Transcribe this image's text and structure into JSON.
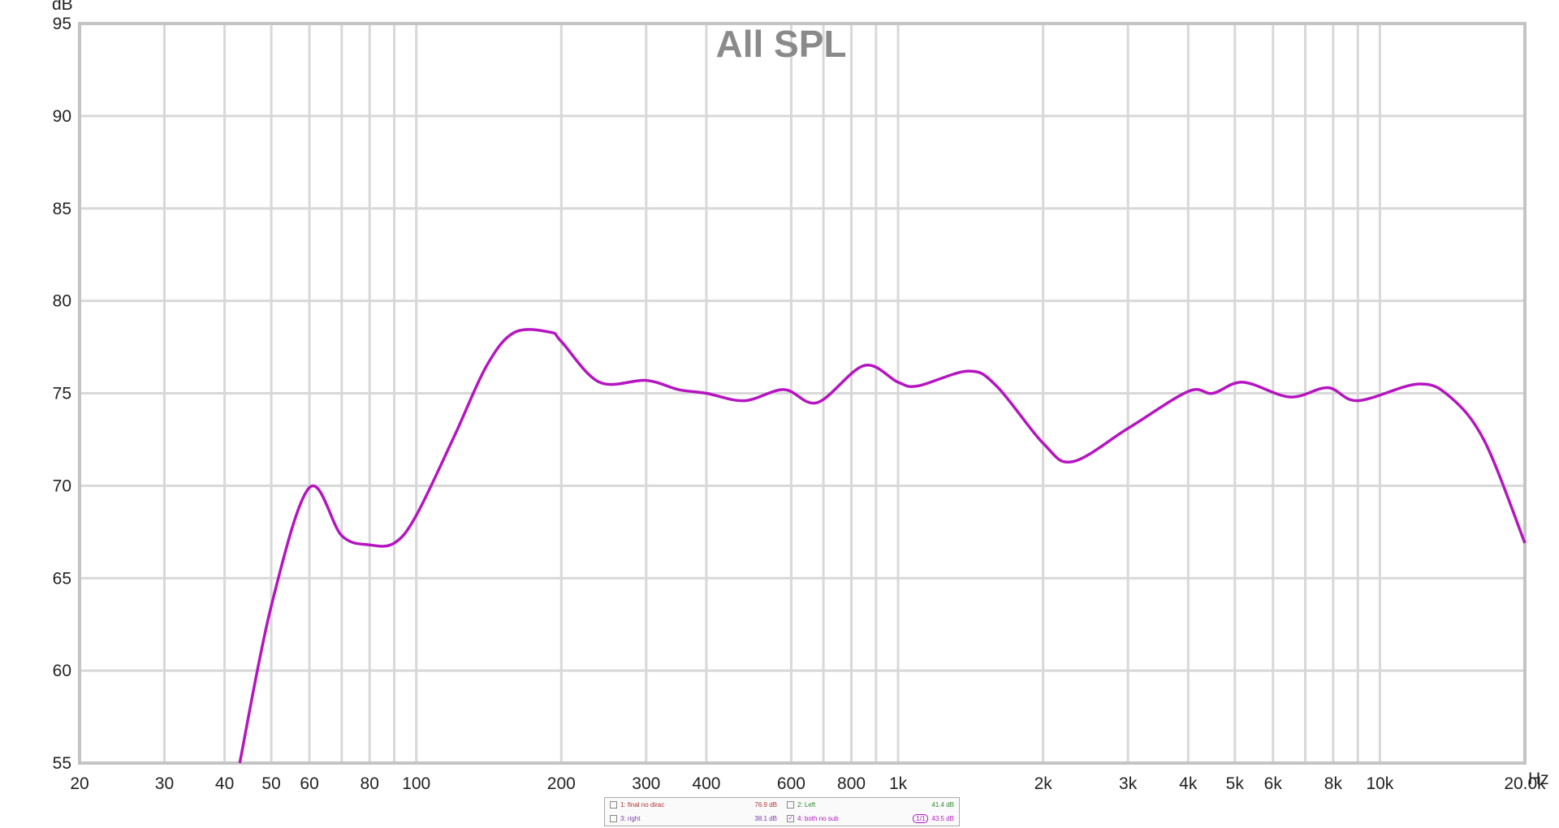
{
  "chart_data": {
    "type": "line",
    "title": "All SPL",
    "y_label": "dB",
    "x_label": "Hz",
    "log_x": true,
    "grid": true,
    "xlim": [
      20,
      20000
    ],
    "ylim": [
      55,
      95
    ],
    "xticks": [
      20,
      30,
      40,
      50,
      60,
      80,
      100,
      200,
      300,
      400,
      600,
      800,
      {
        "value": 1000,
        "label": "1k"
      },
      {
        "value": 2000,
        "label": "2k"
      },
      {
        "value": 3000,
        "label": "3k"
      },
      {
        "value": 4000,
        "label": "4k"
      },
      {
        "value": 5000,
        "label": "5k"
      },
      {
        "value": 6000,
        "label": "6k"
      },
      {
        "value": 8000,
        "label": "8k"
      },
      {
        "value": 10000,
        "label": "10k"
      },
      {
        "value": 20000,
        "label": "20.0k"
      }
    ],
    "xminor": [
      70,
      90,
      700,
      900,
      7000,
      9000
    ],
    "yticks": [
      55,
      60,
      65,
      70,
      75,
      80,
      85,
      90,
      95
    ],
    "x": [
      43,
      50,
      60,
      70,
      80,
      90,
      100,
      120,
      140,
      160,
      190,
      200,
      240,
      300,
      350,
      400,
      480,
      580,
      680,
      850,
      1000,
      1100,
      1400,
      1600,
      2000,
      2300,
      3000,
      4000,
      4500,
      5200,
      6500,
      7800,
      9000,
      12000,
      14000,
      16500,
      20000
    ],
    "series": [
      {
        "name": "4: both no sub",
        "color": "#b515c0",
        "values": [
          55,
          63.5,
          69.9,
          67.3,
          66.8,
          66.9,
          68.4,
          72.7,
          76.5,
          78.3,
          78.3,
          77.8,
          75.6,
          75.7,
          75.2,
          75.0,
          74.6,
          75.2,
          74.5,
          76.5,
          75.6,
          75.4,
          76.2,
          75.4,
          72.3,
          71.3,
          73.1,
          75.1,
          75.0,
          75.6,
          74.8,
          75.3,
          74.6,
          75.5,
          74.8,
          72.4,
          66.9
        ]
      }
    ],
    "legend": [
      {
        "name": "1: final no dirac",
        "color": "#b03030",
        "checked": false,
        "readout": "76.9 dB"
      },
      {
        "name": "2: Left",
        "color": "#2a8a2a",
        "checked": false,
        "readout": "41.4 dB"
      },
      {
        "name": "3: right",
        "color": "#7a3aa0",
        "checked": false,
        "readout": "38.1 dB"
      },
      {
        "name": "4: both no sub",
        "color": "#b515c0",
        "checked": true,
        "readout": "43.5 dB",
        "smoothing": "1/1"
      }
    ]
  }
}
